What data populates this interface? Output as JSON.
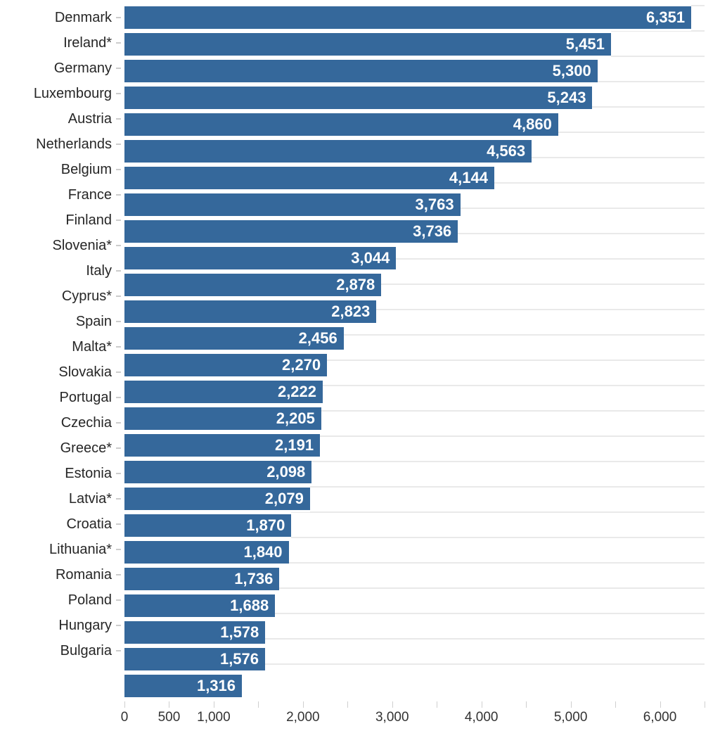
{
  "chart_data": {
    "type": "bar",
    "orientation": "horizontal",
    "title": "",
    "xlabel": "",
    "ylabel": "",
    "legend": "none",
    "grid": "horizontal row separator lines, light gray",
    "bar_color": "#35689B",
    "value_label_color": "#FFFFFF",
    "category_label_color": "#262626",
    "axis_label_color": "#333333",
    "gridline_color": "#E9E9E9",
    "xlim": [
      0,
      6500
    ],
    "x_tick_interval": 500,
    "x_tick_values": [
      0,
      500,
      1000,
      1500,
      2000,
      2500,
      3000,
      3500,
      4000,
      4500,
      5000,
      5500,
      6000,
      6500
    ],
    "x_axis_labels": [
      {
        "value": 0,
        "label": "0"
      },
      {
        "value": 500,
        "label": "500"
      },
      {
        "value": 1000,
        "label": "1,000"
      },
      {
        "value": 2000,
        "label": "2,000"
      },
      {
        "value": 3000,
        "label": "3,000"
      },
      {
        "value": 4000,
        "label": "4,000"
      },
      {
        "value": 5000,
        "label": "5,000"
      },
      {
        "value": 6000,
        "label": "6,000"
      }
    ],
    "categories": [
      "Denmark",
      "Ireland*",
      "Germany",
      "Luxembourg",
      "Austria",
      "Netherlands",
      "Belgium",
      "France",
      "Finland",
      "Slovenia*",
      "Italy",
      "Cyprus*",
      "Spain",
      "Malta*",
      "Slovakia",
      "Portugal",
      "Czechia",
      "Greece*",
      "Estonia",
      "Latvia*",
      "Croatia",
      "Lithuania*",
      "Romania",
      "Poland",
      "Hungary",
      "Bulgaria"
    ],
    "values": [
      6351,
      5451,
      5300,
      5243,
      4860,
      4563,
      4144,
      3763,
      3736,
      3044,
      2878,
      2823,
      2456,
      2270,
      2222,
      2205,
      2191,
      2098,
      2079,
      1870,
      1840,
      1736,
      1688,
      1578,
      1576,
      1316
    ],
    "value_labels": [
      "6,351",
      "5,451",
      "5,300",
      "5,243",
      "4,860",
      "4,563",
      "4,144",
      "3,763",
      "3,736",
      "3,044",
      "2,878",
      "2,823",
      "2,456",
      "2,270",
      "2,222",
      "2,205",
      "2,191",
      "2,098",
      "2,079",
      "1,870",
      "1,840",
      "1,736",
      "1,688",
      "1,578",
      "1,576",
      "1,316"
    ]
  }
}
